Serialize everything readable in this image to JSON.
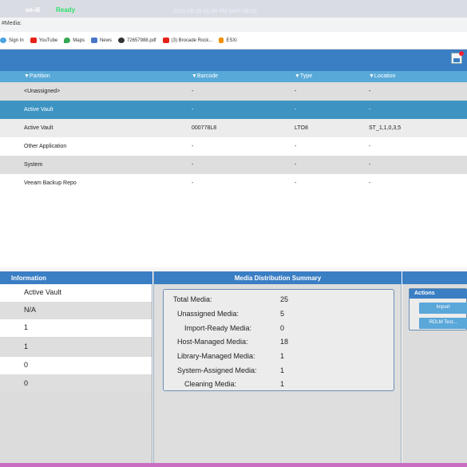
{
  "browser": {
    "address": "#Media:",
    "bookmarks": [
      {
        "label": "Sign In",
        "icon": "globe-icon",
        "color": "#4aa3df"
      },
      {
        "label": "YouTube",
        "icon": "youtube-icon",
        "color": "#e62117"
      },
      {
        "label": "Maps",
        "icon": "maps-icon",
        "color": "#34a853"
      },
      {
        "label": "News",
        "icon": "news-icon",
        "color": "#4a76c9"
      },
      {
        "label": "72657988.pdf",
        "icon": "pdf-icon",
        "color": "#333333"
      },
      {
        "label": "(3) Brocade Rock...",
        "icon": "youtube-icon",
        "color": "#e62117"
      },
      {
        "label": "ESXi",
        "icon": "vmware-icon",
        "color": "#f29100"
      }
    ]
  },
  "header": {
    "library_name": "se-i6",
    "status": "Ready",
    "datetime": "2021-06-25 01:44 PM GMT-08:00"
  },
  "table": {
    "columns": [
      "▼Partition",
      "▼Barcode",
      "▼Type",
      "▼Location"
    ],
    "rows": [
      [
        "<Unassigned>",
        "-",
        "-",
        "-"
      ],
      [
        "Active Vault",
        "-",
        "-",
        "-"
      ],
      [
        "Active Vault",
        "000778L8",
        "LTO8",
        "ST_1,1,0,3,5"
      ],
      [
        "Other Application",
        "-",
        "-",
        "-"
      ],
      [
        "System",
        "-",
        "-",
        "-"
      ],
      [
        "Veeam Backup Repo",
        "-",
        "-",
        "-"
      ]
    ]
  },
  "information": {
    "title": "Information",
    "values": [
      "Active Vault",
      "N/A",
      "1",
      "1",
      "0",
      "0"
    ]
  },
  "summary": {
    "title": "Media Distribution Summary",
    "rows": [
      {
        "label": "Total Media:",
        "value": "25"
      },
      {
        "label": "Unassigned Media:",
        "value": "5"
      },
      {
        "label": "Import-Ready Media:",
        "value": "0"
      },
      {
        "label": "Host-Managed Media:",
        "value": "18"
      },
      {
        "label": "Library-Managed Media:",
        "value": "1"
      },
      {
        "label": "System-Assigned Media:",
        "value": "1"
      },
      {
        "label": "Cleaning Media:",
        "value": "1"
      }
    ]
  },
  "actions": {
    "title": "Actions",
    "buttons": [
      "Import",
      "RDLM Test..."
    ]
  }
}
